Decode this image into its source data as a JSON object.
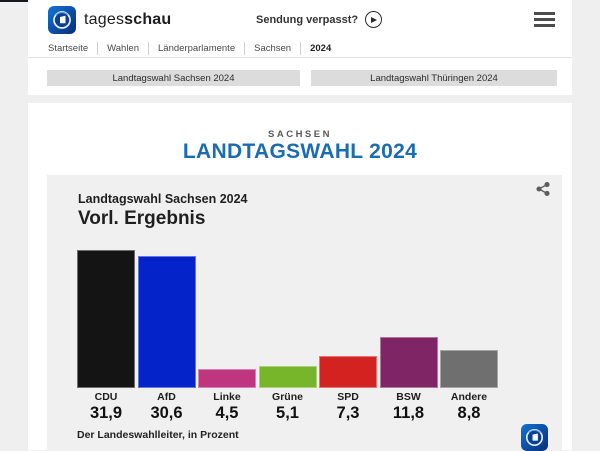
{
  "header": {
    "brand": {
      "word_regular": "tages",
      "word_bold": "schau"
    },
    "sendung_verpasst": "Sendung verpasst?",
    "breadcrumb": [
      "Startseite",
      "Wahlen",
      "Länderparlamente",
      "Sachsen",
      "2024"
    ]
  },
  "tabs": [
    {
      "label": "Landtagswahl Sachsen 2024"
    },
    {
      "label": "Landtagswahl Thüringen 2024"
    }
  ],
  "page": {
    "kicker": "SACHSEN",
    "title": "LANDTAGSWAHL 2024"
  },
  "chart": {
    "subtitle": "Landtagswahl Sachsen 2024",
    "title": "Vorl. Ergebnis",
    "source": "Der Landeswahlleiter, in Prozent"
  },
  "chart_data": {
    "type": "bar",
    "title": "Vorl. Ergebnis",
    "subtitle": "Landtagswahl Sachsen 2024",
    "source": "Der Landeswahlleiter, in Prozent",
    "unit": "Prozent",
    "categories": [
      "CDU",
      "AfD",
      "Linke",
      "Grüne",
      "SPD",
      "BSW",
      "Andere"
    ],
    "values": [
      31.9,
      30.6,
      4.5,
      5.1,
      7.3,
      11.8,
      8.8
    ],
    "value_labels": [
      "31,9",
      "30,6",
      "4,5",
      "5,1",
      "7,3",
      "11,8",
      "8,8"
    ],
    "colors": [
      "#141414",
      "#0423c8",
      "#bf3580",
      "#77b52a",
      "#d42221",
      "#7f2565",
      "#6f6f70"
    ],
    "ylim": [
      0,
      32
    ],
    "grid": false,
    "legend": "none"
  },
  "colors": {
    "accent_blue": "#1b6cb0",
    "card_bg": "#f0f0f0",
    "tab_bg": "#dcdcdc",
    "logo_blue_light": "#1273d4",
    "logo_blue_dark": "#072e7a"
  }
}
